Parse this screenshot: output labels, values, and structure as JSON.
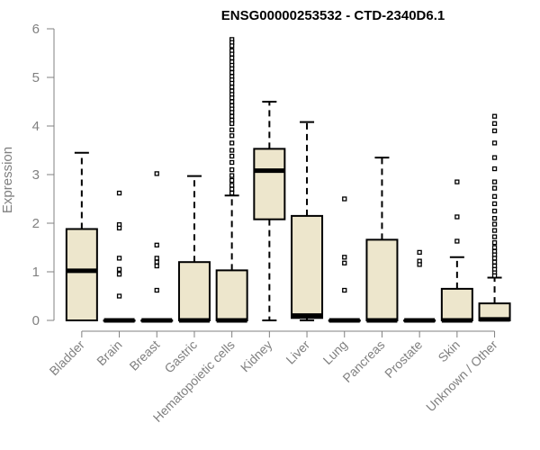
{
  "chart_data": {
    "type": "boxplot",
    "title": "ENSG00000253532 - CTD-2340D6.1",
    "xlabel": "",
    "ylabel": "Expression",
    "ylim": [
      0,
      6
    ],
    "yticks": [
      0,
      1,
      2,
      3,
      4,
      5,
      6
    ],
    "box_fill": "#ede6cc",
    "categories": [
      "Bladder",
      "Brain",
      "Breast",
      "Gastric",
      "Hematopoietic cells",
      "Kidney",
      "Liver",
      "Lung",
      "Pancreas",
      "Prostate",
      "Skin",
      "Unknown / Other"
    ],
    "boxes": [
      {
        "q1": 0,
        "median": 1.02,
        "q3": 1.88,
        "whisker_low": 0,
        "whisker_high": 3.45,
        "outliers": []
      },
      {
        "q1": 0,
        "median": 0,
        "q3": 0,
        "whisker_low": 0,
        "whisker_high": 0,
        "outliers": [
          2.62,
          1.97,
          1.9,
          1.28,
          1.05,
          0.95,
          0.5
        ]
      },
      {
        "q1": 0,
        "median": 0,
        "q3": 0,
        "whisker_low": 0,
        "whisker_high": 0,
        "outliers": [
          3.02,
          1.55,
          1.28,
          1.2,
          1.12,
          0.62
        ]
      },
      {
        "q1": 0,
        "median": 0,
        "q3": 1.2,
        "whisker_low": 0,
        "whisker_high": 2.97,
        "outliers": []
      },
      {
        "q1": 0,
        "median": 0,
        "q3": 1.03,
        "whisker_low": 0,
        "whisker_high": 2.57,
        "outliers": [
          5.78,
          5.72,
          5.65,
          5.55,
          5.48,
          5.4,
          5.32,
          5.25,
          5.18,
          5.1,
          5.02,
          4.95,
          4.88,
          4.8,
          4.72,
          4.65,
          4.58,
          4.5,
          4.42,
          4.35,
          4.28,
          4.2,
          4.12,
          4.05,
          3.92,
          3.8,
          3.65,
          3.5,
          3.38,
          3.25,
          3.1,
          2.98,
          2.88,
          2.78,
          2.7,
          2.62
        ]
      },
      {
        "q1": 2.08,
        "median": 3.08,
        "q3": 3.53,
        "whisker_low": 0,
        "whisker_high": 4.5,
        "outliers": []
      },
      {
        "q1": 0.05,
        "median": 0.1,
        "q3": 2.15,
        "whisker_low": 0,
        "whisker_high": 4.08,
        "outliers": []
      },
      {
        "q1": 0,
        "median": 0,
        "q3": 0,
        "whisker_low": 0,
        "whisker_high": 0,
        "outliers": [
          2.5,
          1.3,
          1.18,
          0.62
        ]
      },
      {
        "q1": 0,
        "median": 0,
        "q3": 1.66,
        "whisker_low": 0,
        "whisker_high": 3.35,
        "outliers": []
      },
      {
        "q1": 0,
        "median": 0,
        "q3": 0,
        "whisker_low": 0,
        "whisker_high": 0,
        "outliers": [
          1.4,
          1.22,
          1.15
        ]
      },
      {
        "q1": 0,
        "median": 0,
        "q3": 0.65,
        "whisker_low": 0,
        "whisker_high": 1.3,
        "outliers": [
          2.85,
          2.13,
          1.63
        ]
      },
      {
        "q1": 0,
        "median": 0.02,
        "q3": 0.35,
        "whisker_low": 0,
        "whisker_high": 0.88,
        "outliers": [
          4.2,
          4.05,
          3.9,
          3.65,
          3.35,
          3.12,
          2.85,
          2.72,
          2.55,
          2.4,
          2.25,
          2.1,
          1.98,
          1.85,
          1.72,
          1.6,
          1.5,
          1.42,
          1.35,
          1.28,
          1.2,
          1.12,
          1.05,
          0.98,
          0.92
        ]
      }
    ]
  }
}
